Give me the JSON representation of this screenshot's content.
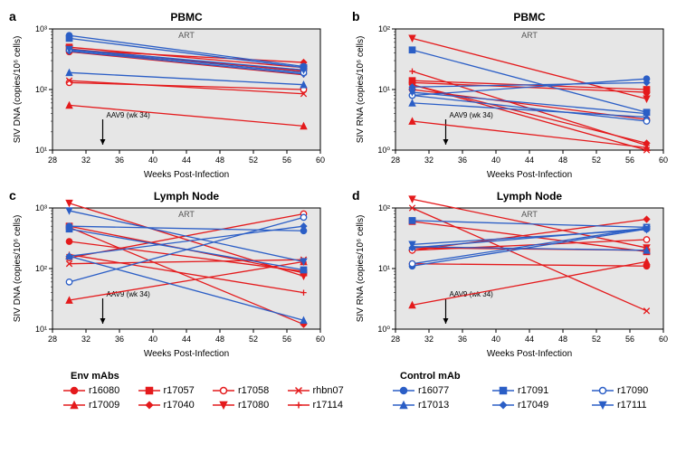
{
  "colors": {
    "red": "#e41a1c",
    "blue": "#2b5ec6",
    "plot_bg": "#e6e6e6",
    "axis": "#000000",
    "text": "#000000"
  },
  "font": {
    "family": "Arial",
    "label_pt": 10,
    "title_pt": 12,
    "legend_pt": 11
  },
  "xaxis": {
    "label": "Weeks Post-Infection",
    "min": 28,
    "max": 60,
    "ticks": [
      28,
      32,
      36,
      40,
      44,
      48,
      52,
      56,
      60
    ]
  },
  "annotation": {
    "text": "AAV9 (wk 34)",
    "x": 34
  },
  "art_label": "ART",
  "panels": {
    "a": {
      "letter": "a",
      "title": "PBMC",
      "ylabel": "SIV DNA (copies/10⁶ cells)",
      "yscale": "log",
      "ymin_exp": 1,
      "ymax_exp": 3,
      "series": [
        {
          "id": "r16080",
          "color": "red",
          "marker": "circle",
          "fill": true,
          "pts": [
            [
              30,
              420
            ],
            [
              58,
              210
            ]
          ]
        },
        {
          "id": "r17009",
          "color": "red",
          "marker": "triangle",
          "fill": true,
          "pts": [
            [
              30,
              55
            ],
            [
              58,
              25
            ]
          ]
        },
        {
          "id": "r17057",
          "color": "red",
          "marker": "square",
          "fill": true,
          "pts": [
            [
              30,
              500
            ],
            [
              58,
              230
            ]
          ]
        },
        {
          "id": "r17040",
          "color": "red",
          "marker": "diamond",
          "fill": true,
          "pts": [
            [
              30,
              450
            ],
            [
              58,
              280
            ]
          ]
        },
        {
          "id": "r17058",
          "color": "red",
          "marker": "circle",
          "fill": false,
          "pts": [
            [
              30,
              130
            ],
            [
              58,
              100
            ]
          ]
        },
        {
          "id": "r17080",
          "color": "red",
          "marker": "tridown",
          "fill": true,
          "pts": [
            [
              30,
              470
            ],
            [
              58,
              200
            ]
          ]
        },
        {
          "id": "rhbn07",
          "color": "red",
          "marker": "x",
          "fill": false,
          "pts": [
            [
              30,
              140
            ],
            [
              58,
              85
            ]
          ]
        },
        {
          "id": "r17114",
          "color": "red",
          "marker": "plus",
          "fill": false,
          "pts": [
            [
              30,
              420
            ],
            [
              58,
              175
            ]
          ]
        },
        {
          "id": "r16077",
          "color": "blue",
          "marker": "circle",
          "fill": true,
          "pts": [
            [
              30,
              780
            ],
            [
              58,
              240
            ]
          ]
        },
        {
          "id": "r17013",
          "color": "blue",
          "marker": "triangle",
          "fill": true,
          "pts": [
            [
              30,
              190
            ],
            [
              58,
              120
            ]
          ]
        },
        {
          "id": "r17091",
          "color": "blue",
          "marker": "square",
          "fill": true,
          "pts": [
            [
              30,
              700
            ],
            [
              58,
              230
            ]
          ]
        },
        {
          "id": "r17049",
          "color": "blue",
          "marker": "diamond",
          "fill": true,
          "pts": [
            [
              30,
              430
            ],
            [
              58,
              180
            ]
          ]
        },
        {
          "id": "r17090",
          "color": "blue",
          "marker": "circle",
          "fill": false,
          "pts": [
            [
              30,
              450
            ],
            [
              58,
              190
            ]
          ]
        },
        {
          "id": "r17111",
          "color": "blue",
          "marker": "tridown",
          "fill": true,
          "pts": [
            [
              30,
              460
            ],
            [
              58,
              210
            ]
          ]
        }
      ]
    },
    "b": {
      "letter": "b",
      "title": "PBMC",
      "ylabel": "SIV RNA (copies/10⁶ cells)",
      "yscale": "log",
      "ymin_exp": 0,
      "ymax_exp": 2,
      "series": [
        {
          "id": "r16080",
          "color": "red",
          "marker": "circle",
          "fill": true,
          "pts": [
            [
              30,
              13
            ],
            [
              58,
              9
            ]
          ]
        },
        {
          "id": "r17009",
          "color": "red",
          "marker": "triangle",
          "fill": true,
          "pts": [
            [
              30,
              3
            ],
            [
              58,
              1.1
            ]
          ]
        },
        {
          "id": "r17057",
          "color": "red",
          "marker": "square",
          "fill": true,
          "pts": [
            [
              30,
              14
            ],
            [
              58,
              10
            ]
          ]
        },
        {
          "id": "r17040",
          "color": "red",
          "marker": "diamond",
          "fill": true,
          "pts": [
            [
              30,
              12
            ],
            [
              58,
              1.3
            ]
          ]
        },
        {
          "id": "r17058",
          "color": "red",
          "marker": "circle",
          "fill": false,
          "pts": [
            [
              30,
              10
            ],
            [
              58,
              3.2
            ]
          ]
        },
        {
          "id": "r17080",
          "color": "red",
          "marker": "tridown",
          "fill": true,
          "pts": [
            [
              30,
              70
            ],
            [
              58,
              7
            ]
          ]
        },
        {
          "id": "rhbn07",
          "color": "red",
          "marker": "x",
          "fill": false,
          "pts": [
            [
              30,
              12
            ],
            [
              58,
              1.0
            ]
          ]
        },
        {
          "id": "r17114",
          "color": "red",
          "marker": "plus",
          "fill": false,
          "pts": [
            [
              30,
              20
            ],
            [
              58,
              1.2
            ]
          ]
        },
        {
          "id": "r16077",
          "color": "blue",
          "marker": "circle",
          "fill": true,
          "pts": [
            [
              30,
              8
            ],
            [
              58,
              15
            ]
          ]
        },
        {
          "id": "r17013",
          "color": "blue",
          "marker": "triangle",
          "fill": true,
          "pts": [
            [
              30,
              6
            ],
            [
              58,
              3.5
            ]
          ]
        },
        {
          "id": "r17091",
          "color": "blue",
          "marker": "square",
          "fill": true,
          "pts": [
            [
              30,
              45
            ],
            [
              58,
              4.2
            ]
          ]
        },
        {
          "id": "r17049",
          "color": "blue",
          "marker": "diamond",
          "fill": true,
          "pts": [
            [
              30,
              11
            ],
            [
              58,
              13
            ]
          ]
        },
        {
          "id": "r17090",
          "color": "blue",
          "marker": "circle",
          "fill": false,
          "pts": [
            [
              30,
              8
            ],
            [
              58,
              3.0
            ]
          ]
        },
        {
          "id": "r17111",
          "color": "blue",
          "marker": "tridown",
          "fill": true,
          "pts": [
            [
              30,
              9
            ],
            [
              58,
              4.0
            ]
          ]
        }
      ]
    },
    "c": {
      "letter": "c",
      "title": "Lymph Node",
      "ylabel": "SIV DNA (copies/10⁶ cells)",
      "yscale": "log",
      "ymin_exp": 1,
      "ymax_exp": 3,
      "series": [
        {
          "id": "r16080",
          "color": "red",
          "marker": "circle",
          "fill": true,
          "pts": [
            [
              30,
              280
            ],
            [
              58,
              90
            ]
          ]
        },
        {
          "id": "r17009",
          "color": "red",
          "marker": "triangle",
          "fill": true,
          "pts": [
            [
              30,
              30
            ],
            [
              58,
              130
            ]
          ]
        },
        {
          "id": "r17057",
          "color": "red",
          "marker": "square",
          "fill": true,
          "pts": [
            [
              30,
              500
            ],
            [
              58,
              85
            ]
          ]
        },
        {
          "id": "r17040",
          "color": "red",
          "marker": "diamond",
          "fill": true,
          "pts": [
            [
              30,
              480
            ],
            [
              58,
              12
            ]
          ]
        },
        {
          "id": "r17058",
          "color": "red",
          "marker": "circle",
          "fill": false,
          "pts": [
            [
              30,
              150
            ],
            [
              58,
              800
            ]
          ]
        },
        {
          "id": "r17080",
          "color": "red",
          "marker": "tridown",
          "fill": true,
          "pts": [
            [
              30,
              1200
            ],
            [
              58,
              75
            ]
          ]
        },
        {
          "id": "rhbn07",
          "color": "red",
          "marker": "x",
          "fill": false,
          "pts": [
            [
              30,
              120
            ],
            [
              58,
              140
            ]
          ]
        },
        {
          "id": "r17114",
          "color": "red",
          "marker": "plus",
          "fill": false,
          "pts": [
            [
              30,
              170
            ],
            [
              58,
              40
            ]
          ]
        },
        {
          "id": "r16077",
          "color": "blue",
          "marker": "circle",
          "fill": true,
          "pts": [
            [
              30,
              500
            ],
            [
              58,
              420
            ]
          ]
        },
        {
          "id": "r17013",
          "color": "blue",
          "marker": "triangle",
          "fill": true,
          "pts": [
            [
              30,
              160
            ],
            [
              58,
              14
            ]
          ]
        },
        {
          "id": "r17091",
          "color": "blue",
          "marker": "square",
          "fill": true,
          "pts": [
            [
              30,
              450
            ],
            [
              58,
              95
            ]
          ]
        },
        {
          "id": "r17049",
          "color": "blue",
          "marker": "diamond",
          "fill": true,
          "pts": [
            [
              30,
              160
            ],
            [
              58,
              500
            ]
          ]
        },
        {
          "id": "r17090",
          "color": "blue",
          "marker": "circle",
          "fill": false,
          "pts": [
            [
              30,
              60
            ],
            [
              58,
              700
            ]
          ]
        },
        {
          "id": "r17111",
          "color": "blue",
          "marker": "tridown",
          "fill": true,
          "pts": [
            [
              30,
              900
            ],
            [
              58,
              130
            ]
          ]
        }
      ]
    },
    "d": {
      "letter": "d",
      "title": "Lymph Node",
      "ylabel": "SIV RNA (copies/10⁶ cells)",
      "yscale": "log",
      "ymin_exp": 0,
      "ymax_exp": 2,
      "series": [
        {
          "id": "r16080",
          "color": "red",
          "marker": "circle",
          "fill": true,
          "pts": [
            [
              30,
              12
            ],
            [
              58,
              11
            ]
          ]
        },
        {
          "id": "r17009",
          "color": "red",
          "marker": "triangle",
          "fill": true,
          "pts": [
            [
              30,
              2.5
            ],
            [
              58,
              13
            ]
          ]
        },
        {
          "id": "r17057",
          "color": "red",
          "marker": "square",
          "fill": true,
          "pts": [
            [
              30,
              60
            ],
            [
              58,
              19
            ]
          ]
        },
        {
          "id": "r17040",
          "color": "red",
          "marker": "diamond",
          "fill": true,
          "pts": [
            [
              30,
              20
            ],
            [
              58,
              65
            ]
          ]
        },
        {
          "id": "r17058",
          "color": "red",
          "marker": "circle",
          "fill": false,
          "pts": [
            [
              30,
              20
            ],
            [
              58,
              30
            ]
          ]
        },
        {
          "id": "r17080",
          "color": "red",
          "marker": "tridown",
          "fill": true,
          "pts": [
            [
              30,
              140
            ],
            [
              58,
              22
            ]
          ]
        },
        {
          "id": "rhbn07",
          "color": "red",
          "marker": "x",
          "fill": false,
          "pts": [
            [
              30,
              100
            ],
            [
              58,
              2
            ]
          ]
        },
        {
          "id": "r17114",
          "color": "red",
          "marker": "plus",
          "fill": false,
          "pts": [
            [
              30,
              22
            ],
            [
              58,
              20
            ]
          ]
        },
        {
          "id": "r16077",
          "color": "blue",
          "marker": "circle",
          "fill": true,
          "pts": [
            [
              30,
              11
            ],
            [
              58,
              45
            ]
          ]
        },
        {
          "id": "r17013",
          "color": "blue",
          "marker": "triangle",
          "fill": true,
          "pts": [
            [
              30,
              23
            ],
            [
              58,
              20
            ]
          ]
        },
        {
          "id": "r17091",
          "color": "blue",
          "marker": "square",
          "fill": true,
          "pts": [
            [
              30,
              62
            ],
            [
              58,
              48
            ]
          ]
        },
        {
          "id": "r17049",
          "color": "blue",
          "marker": "diamond",
          "fill": true,
          "pts": [
            [
              30,
              22
            ],
            [
              58,
              46
            ]
          ]
        },
        {
          "id": "r17090",
          "color": "blue",
          "marker": "circle",
          "fill": false,
          "pts": [
            [
              30,
              12
            ],
            [
              58,
              47
            ]
          ]
        },
        {
          "id": "r17111",
          "color": "blue",
          "marker": "tridown",
          "fill": true,
          "pts": [
            [
              30,
              25
            ],
            [
              58,
              44
            ]
          ]
        }
      ]
    }
  },
  "legend": {
    "env_title": "Env mAbs",
    "ctrl_title": "Control mAb",
    "env": [
      {
        "id": "r16080",
        "color": "red",
        "marker": "circle",
        "fill": true
      },
      {
        "id": "r17057",
        "color": "red",
        "marker": "square",
        "fill": true
      },
      {
        "id": "r17058",
        "color": "red",
        "marker": "circle",
        "fill": false
      },
      {
        "id": "rhbn07",
        "color": "red",
        "marker": "x",
        "fill": false
      },
      {
        "id": "r17009",
        "color": "red",
        "marker": "triangle",
        "fill": true
      },
      {
        "id": "r17040",
        "color": "red",
        "marker": "diamond",
        "fill": true
      },
      {
        "id": "r17080",
        "color": "red",
        "marker": "tridown",
        "fill": true
      },
      {
        "id": "r17114",
        "color": "red",
        "marker": "plus",
        "fill": false
      }
    ],
    "ctrl": [
      {
        "id": "r16077",
        "color": "blue",
        "marker": "circle",
        "fill": true
      },
      {
        "id": "r17091",
        "color": "blue",
        "marker": "square",
        "fill": true
      },
      {
        "id": "r17090",
        "color": "blue",
        "marker": "circle",
        "fill": false
      },
      {
        "id": "r17013",
        "color": "blue",
        "marker": "triangle",
        "fill": true
      },
      {
        "id": "r17049",
        "color": "blue",
        "marker": "diamond",
        "fill": true
      },
      {
        "id": "r17111",
        "color": "blue",
        "marker": "tridown",
        "fill": true
      }
    ]
  }
}
